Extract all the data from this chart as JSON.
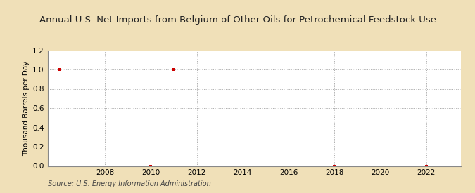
{
  "title": "Annual U.S. Net Imports from Belgium of Other Oils for Petrochemical Feedstock Use",
  "ylabel": "Thousand Barrels per Day",
  "source": "Source: U.S. Energy Information Administration",
  "background_color": "#f0e0b8",
  "plot_background_color": "#ffffff",
  "data_points": [
    {
      "year": 2006,
      "value": 1.0
    },
    {
      "year": 2010,
      "value": 0.0
    },
    {
      "year": 2011,
      "value": 1.0
    },
    {
      "year": 2018,
      "value": 0.0
    },
    {
      "year": 2022,
      "value": 0.0
    }
  ],
  "marker_color": "#cc0000",
  "marker_style": "s",
  "marker_size": 3.5,
  "xlim": [
    2005.5,
    2023.5
  ],
  "ylim": [
    0.0,
    1.2
  ],
  "yticks": [
    0.0,
    0.2,
    0.4,
    0.6,
    0.8,
    1.0,
    1.2
  ],
  "xticks": [
    2008,
    2010,
    2012,
    2014,
    2016,
    2018,
    2020,
    2022
  ],
  "grid_color": "#aaaaaa",
  "grid_linestyle": ":",
  "title_fontsize": 9.5,
  "label_fontsize": 7.5,
  "tick_fontsize": 7.5,
  "source_fontsize": 7.0
}
